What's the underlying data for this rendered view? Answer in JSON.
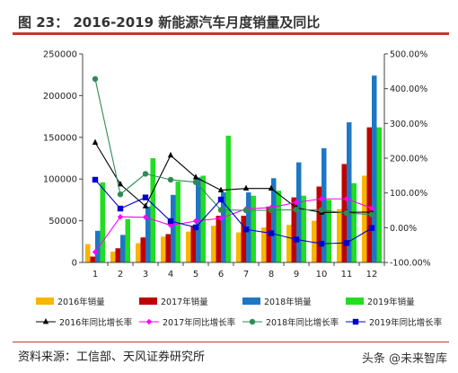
{
  "title": "图 23： 2016-2019 新能源汽车月度销量及同比",
  "source": "资料来源：工信部、天风证券研究所",
  "watermark": "头条 @未来智库",
  "chart_data": {
    "type": "bar",
    "categories": [
      "1",
      "2",
      "3",
      "4",
      "5",
      "6",
      "7",
      "8",
      "9",
      "10",
      "11",
      "12"
    ],
    "ylim": [
      0,
      250000
    ],
    "yticks": [
      0,
      50000,
      100000,
      150000,
      200000,
      250000
    ],
    "ytick_labels": [
      "0",
      "50000",
      "100000",
      "150000",
      "200000",
      "250000"
    ],
    "y2lim": [
      -100,
      500
    ],
    "y2ticks": [
      -100,
      0,
      100,
      200,
      300,
      400,
      500
    ],
    "y2tick_labels": [
      "-100.00%",
      "0.00%",
      "100.00%",
      "200.00%",
      "300.00%",
      "400.00%",
      "500.00%"
    ],
    "bar_series": [
      {
        "name": "2016年销量",
        "color": "#f7b500",
        "values": [
          22000,
          13000,
          23000,
          31000,
          37000,
          44000,
          36000,
          42000,
          45000,
          50000,
          64000,
          104000
        ]
      },
      {
        "name": "2017年销量",
        "color": "#c00000",
        "values": [
          7000,
          17000,
          30000,
          34000,
          44000,
          56000,
          56000,
          67000,
          78000,
          91000,
          118000,
          162000
        ]
      },
      {
        "name": "2018年销量",
        "color": "#1f77c4",
        "values": [
          38000,
          33000,
          67000,
          81000,
          102000,
          84000,
          84000,
          101000,
          120000,
          137000,
          168000,
          224000
        ]
      },
      {
        "name": "2019年销量",
        "color": "#22dd22",
        "values": [
          96000,
          52000,
          125000,
          97000,
          104000,
          152000,
          80000,
          86000,
          80000,
          75000,
          95000,
          162000
        ]
      }
    ],
    "line_series": [
      {
        "name": "2016年同比增长率",
        "color": "#000000",
        "marker": "triangle",
        "values": [
          245,
          125,
          62,
          208,
          145,
          108,
          113,
          113,
          57,
          44,
          44,
          45
        ]
      },
      {
        "name": "2017年同比增长率",
        "color": "#ff00ff",
        "marker": "diamond",
        "values": [
          -70,
          31,
          30,
          7,
          19,
          27,
          54,
          58,
          73,
          83,
          83,
          56
        ]
      },
      {
        "name": "2018年同比增长率",
        "color": "#2e8b57",
        "marker": "circle",
        "values": [
          428,
          96,
          155,
          138,
          131,
          51,
          50,
          50,
          52,
          51,
          42,
          38
        ]
      },
      {
        "name": "2019年同比增长率",
        "color": "#0000cc",
        "marker": "square",
        "values": [
          138,
          55,
          87,
          19,
          1,
          81,
          -5,
          -16,
          -34,
          -46,
          -44,
          -1
        ]
      }
    ]
  }
}
